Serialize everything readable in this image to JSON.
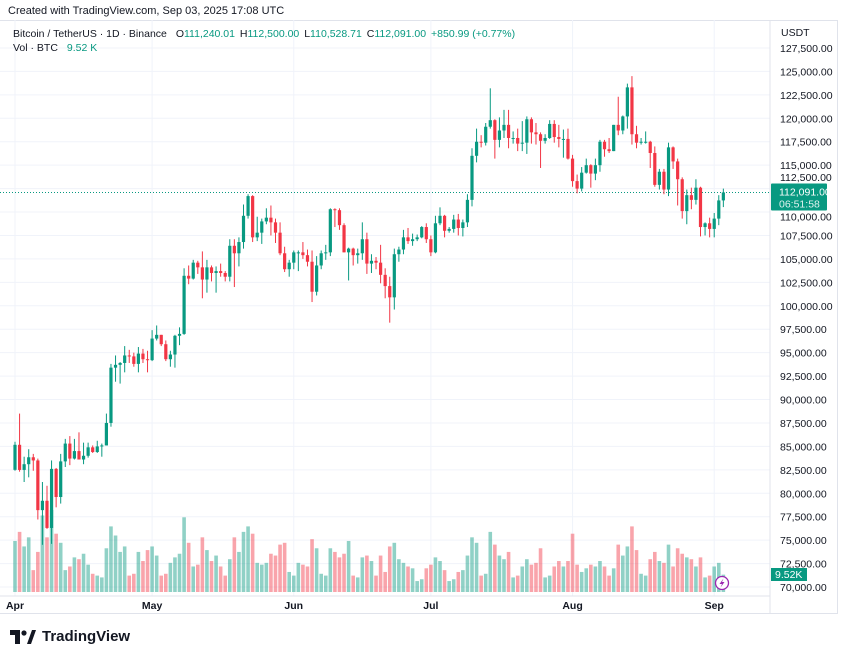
{
  "header": {
    "created": "Created with TradingView.com, Sep 03, 2025 17:08 UTC"
  },
  "legend": {
    "symbol": "Bitcoin / TetherUS · 1D · Binance",
    "o_label": "O",
    "o": "111,240.01",
    "h_label": "H",
    "h": "112,500.00",
    "l_label": "L",
    "l": "110,528.71",
    "c_label": "C",
    "c": "112,091.00",
    "change": "+850.99 (+0.77%)",
    "vol_label": "Vol · BTC",
    "vol": "9.52 K"
  },
  "footer": {
    "brand": "TradingView"
  },
  "colors": {
    "up": "#089981",
    "down": "#f23645",
    "accent": "#089981",
    "lightning": "#9c27b0"
  },
  "chart_data": {
    "type": "candlestick",
    "currency": "USDT",
    "ylim": [
      70000,
      127500
    ],
    "y_ticks": [
      "127,500.00",
      "125,000.00",
      "122,500.00",
      "120,000.00",
      "117,500.00",
      "115,000.00",
      "112,500.00",
      "110,000.00",
      "107,500.00",
      "105,000.00",
      "102,500.00",
      "100,000.00",
      "97,500.00",
      "95,000.00",
      "92,500.00",
      "90,000.00",
      "87,500.00",
      "85,000.00",
      "82,500.00",
      "80,000.00",
      "77,500.00",
      "75,000.00",
      "72,500.00",
      "70,000.00"
    ],
    "x_ticks": [
      {
        "label": "Apr",
        "date": "04-01"
      },
      {
        "label": "May",
        "date": "05-01"
      },
      {
        "label": "Jun",
        "date": "06-01"
      },
      {
        "label": "Jul",
        "date": "07-01"
      },
      {
        "label": "Aug",
        "date": "08-01"
      },
      {
        "label": "Sep",
        "date": "09-01"
      }
    ],
    "last_price": 112091,
    "last_price_label": "112,091.00",
    "countdown": "06:51:58",
    "last_volume_label": "9.52K",
    "grid": true,
    "candle_fields": [
      "date",
      "open",
      "high",
      "low",
      "close",
      "volume_k"
    ],
    "candles": [
      [
        "04-01",
        82500,
        85500,
        82400,
        85170,
        28
      ],
      [
        "04-02",
        85170,
        88500,
        82300,
        82490,
        33
      ],
      [
        "04-03",
        82490,
        83900,
        81200,
        83100,
        25
      ],
      [
        "04-04",
        83100,
        84700,
        81700,
        83840,
        30
      ],
      [
        "04-05",
        83840,
        84200,
        82400,
        83500,
        12
      ],
      [
        "04-06",
        83500,
        83700,
        77200,
        78200,
        22
      ],
      [
        "04-07",
        78200,
        81200,
        74500,
        79200,
        42
      ],
      [
        "04-08",
        79200,
        80800,
        76200,
        76300,
        30
      ],
      [
        "04-09",
        76300,
        83500,
        74600,
        82600,
        45
      ],
      [
        "04-10",
        82600,
        82700,
        78500,
        79600,
        32
      ],
      [
        "04-11",
        79600,
        84200,
        78900,
        83400,
        27
      ],
      [
        "04-12",
        83400,
        85800,
        82800,
        85300,
        12
      ],
      [
        "04-13",
        85300,
        86100,
        83000,
        83700,
        14
      ],
      [
        "04-14",
        83700,
        85800,
        83600,
        84500,
        19
      ],
      [
        "04-15",
        84500,
        86500,
        83600,
        83600,
        18
      ],
      [
        "04-16",
        83600,
        85400,
        83100,
        84000,
        21
      ],
      [
        "04-17",
        84000,
        85400,
        83800,
        84900,
        15
      ],
      [
        "04-18",
        84900,
        85100,
        84300,
        84400,
        10
      ],
      [
        "04-19",
        84400,
        85600,
        84300,
        85000,
        9
      ],
      [
        "04-20",
        85000,
        85300,
        83900,
        85100,
        8
      ],
      [
        "04-21",
        85100,
        88500,
        85100,
        87500,
        24
      ],
      [
        "04-22",
        87500,
        93800,
        87100,
        93400,
        36
      ],
      [
        "04-23",
        93400,
        94700,
        91900,
        93700,
        31
      ],
      [
        "04-24",
        93700,
        94000,
        91700,
        93900,
        22
      ],
      [
        "04-25",
        93900,
        95700,
        92900,
        94700,
        25
      ],
      [
        "04-26",
        94700,
        95300,
        93900,
        94600,
        9
      ],
      [
        "04-27",
        94600,
        95000,
        93500,
        93800,
        10
      ],
      [
        "04-28",
        93800,
        95600,
        92900,
        94900,
        22
      ],
      [
        "04-29",
        94900,
        95400,
        93900,
        94300,
        17
      ],
      [
        "04-30",
        94300,
        95200,
        92900,
        94200,
        23
      ],
      [
        "05-01",
        94200,
        97400,
        94100,
        96500,
        25
      ],
      [
        "05-02",
        96500,
        97900,
        96300,
        96900,
        20
      ],
      [
        "05-03",
        96900,
        96900,
        95700,
        95900,
        9
      ],
      [
        "05-04",
        95900,
        96300,
        94100,
        94300,
        10
      ],
      [
        "05-05",
        94300,
        95200,
        93500,
        94800,
        16
      ],
      [
        "05-06",
        94800,
        96900,
        93400,
        96800,
        19
      ],
      [
        "05-07",
        96800,
        97700,
        95800,
        97000,
        21
      ],
      [
        "05-08",
        97000,
        104000,
        96900,
        103200,
        41
      ],
      [
        "05-09",
        103200,
        104300,
        102300,
        102900,
        27
      ],
      [
        "05-10",
        102900,
        104900,
        102800,
        104600,
        14
      ],
      [
        "05-11",
        104600,
        104800,
        103400,
        104100,
        15
      ],
      [
        "05-12",
        104100,
        105800,
        100800,
        102800,
        30
      ],
      [
        "05-13",
        102800,
        104900,
        101400,
        104100,
        23
      ],
      [
        "05-14",
        104100,
        104300,
        102600,
        103500,
        17
      ],
      [
        "05-15",
        103500,
        104200,
        101400,
        103700,
        20
      ],
      [
        "05-16",
        103700,
        104500,
        103100,
        103500,
        14
      ],
      [
        "05-17",
        103500,
        103700,
        102600,
        103100,
        9
      ],
      [
        "05-18",
        103100,
        107100,
        102600,
        106400,
        18
      ],
      [
        "05-19",
        106400,
        107100,
        102000,
        105600,
        30
      ],
      [
        "05-20",
        105600,
        107300,
        104200,
        106800,
        22
      ],
      [
        "05-21",
        106800,
        110800,
        106100,
        109600,
        33
      ],
      [
        "05-22",
        109600,
        111900,
        109300,
        111700,
        36
      ],
      [
        "05-23",
        111700,
        111800,
        106800,
        107300,
        32
      ],
      [
        "05-24",
        107300,
        109500,
        106900,
        107800,
        16
      ],
      [
        "05-25",
        107800,
        109300,
        106600,
        109000,
        15
      ],
      [
        "05-26",
        109000,
        110400,
        108700,
        109400,
        16
      ],
      [
        "05-27",
        109400,
        110700,
        107500,
        108900,
        21
      ],
      [
        "05-28",
        108900,
        109300,
        106700,
        107800,
        20
      ],
      [
        "05-29",
        107800,
        108900,
        105400,
        105600,
        26
      ],
      [
        "05-30",
        105600,
        106300,
        103600,
        103900,
        27
      ],
      [
        "05-31",
        103900,
        104900,
        103100,
        104600,
        11
      ],
      [
        "06-01",
        104600,
        105900,
        103900,
        105700,
        9
      ],
      [
        "06-02",
        105700,
        105900,
        103700,
        105700,
        16
      ],
      [
        "06-03",
        105700,
        106800,
        105000,
        105400,
        15
      ],
      [
        "06-04",
        105400,
        106000,
        104200,
        104700,
        14
      ],
      [
        "06-05",
        104700,
        105900,
        100400,
        101500,
        29
      ],
      [
        "06-06",
        101500,
        105300,
        101100,
        104300,
        24
      ],
      [
        "06-07",
        104300,
        105900,
        103900,
        105600,
        10
      ],
      [
        "06-08",
        105600,
        106500,
        104900,
        105700,
        9
      ],
      [
        "06-09",
        105700,
        110400,
        105300,
        110300,
        24
      ],
      [
        "06-10",
        110300,
        110400,
        108400,
        110200,
        22
      ],
      [
        "06-11",
        110200,
        110400,
        108100,
        108600,
        19
      ],
      [
        "06-12",
        108600,
        108800,
        105700,
        105700,
        21
      ],
      [
        "06-13",
        105700,
        106200,
        102700,
        106100,
        28
      ],
      [
        "06-14",
        106100,
        106200,
        104300,
        105400,
        9
      ],
      [
        "06-15",
        105400,
        106100,
        104500,
        105600,
        8
      ],
      [
        "06-16",
        105600,
        108900,
        104900,
        107100,
        19
      ],
      [
        "06-17",
        107100,
        107800,
        103400,
        104500,
        20
      ],
      [
        "06-18",
        104500,
        105500,
        103500,
        104800,
        17
      ],
      [
        "06-19",
        104800,
        105200,
        103900,
        104600,
        9
      ],
      [
        "06-20",
        104600,
        106500,
        102400,
        103300,
        20
      ],
      [
        "06-21",
        103300,
        104000,
        100800,
        102100,
        11
      ],
      [
        "06-22",
        102100,
        103100,
        98200,
        100900,
        25
      ],
      [
        "06-23",
        100900,
        106100,
        99600,
        105500,
        27
      ],
      [
        "06-24",
        105500,
        106300,
        104700,
        106000,
        18
      ],
      [
        "06-25",
        106000,
        108100,
        105500,
        107300,
        16
      ],
      [
        "06-26",
        107300,
        108300,
        106600,
        106900,
        14
      ],
      [
        "06-27",
        106900,
        107700,
        106400,
        107100,
        13
      ],
      [
        "06-28",
        107100,
        107600,
        106900,
        107300,
        6
      ],
      [
        "06-29",
        107300,
        108500,
        107200,
        108400,
        7
      ],
      [
        "06-30",
        108400,
        108800,
        106700,
        107100,
        13
      ],
      [
        "07-01",
        107100,
        107500,
        105300,
        105700,
        15
      ],
      [
        "07-02",
        105700,
        109600,
        105600,
        108800,
        19
      ],
      [
        "07-03",
        108800,
        110500,
        108600,
        109600,
        17
      ],
      [
        "07-04",
        109600,
        109700,
        107300,
        108000,
        12
      ],
      [
        "07-05",
        108000,
        108400,
        107800,
        108200,
        6
      ],
      [
        "07-06",
        108200,
        109700,
        107800,
        109200,
        7
      ],
      [
        "07-07",
        109200,
        109800,
        107500,
        108300,
        11
      ],
      [
        "07-08",
        108300,
        109200,
        107400,
        108900,
        12
      ],
      [
        "07-09",
        108900,
        111900,
        108400,
        111300,
        20
      ],
      [
        "07-10",
        111300,
        116800,
        110600,
        116000,
        30
      ],
      [
        "07-11",
        116000,
        118900,
        115300,
        117500,
        27
      ],
      [
        "07-12",
        117500,
        118200,
        116900,
        117400,
        9
      ],
      [
        "07-13",
        117400,
        119500,
        117100,
        119100,
        10
      ],
      [
        "07-14",
        119100,
        123200,
        118900,
        119800,
        33
      ],
      [
        "07-15",
        119800,
        119900,
        115700,
        117700,
        26
      ],
      [
        "07-16",
        117700,
        120100,
        116900,
        118700,
        20
      ],
      [
        "07-17",
        118700,
        120900,
        117900,
        119300,
        18
      ],
      [
        "07-18",
        119300,
        120900,
        116800,
        117900,
        22
      ],
      [
        "07-19",
        117900,
        118600,
        117300,
        117900,
        8
      ],
      [
        "07-20",
        117900,
        118900,
        116500,
        117300,
        9
      ],
      [
        "07-21",
        117300,
        119700,
        116500,
        117400,
        14
      ],
      [
        "07-22",
        117400,
        120200,
        116200,
        119900,
        18
      ],
      [
        "07-23",
        119900,
        120100,
        117300,
        118500,
        15
      ],
      [
        "07-24",
        118500,
        119500,
        117200,
        118300,
        16
      ],
      [
        "07-25",
        118300,
        118500,
        114700,
        117600,
        24
      ],
      [
        "07-26",
        117600,
        118300,
        117300,
        117900,
        8
      ],
      [
        "07-27",
        117900,
        119800,
        117800,
        119400,
        9
      ],
      [
        "07-28",
        119400,
        119800,
        117400,
        118000,
        14
      ],
      [
        "07-29",
        118000,
        119300,
        116900,
        117800,
        17
      ],
      [
        "07-30",
        117800,
        118800,
        115800,
        117800,
        14
      ],
      [
        "07-31",
        117800,
        118900,
        115600,
        115700,
        17
      ],
      [
        "08-01",
        115700,
        116100,
        112700,
        113300,
        32
      ],
      [
        "08-02",
        113300,
        114000,
        112000,
        112500,
        15
      ],
      [
        "08-03",
        112500,
        114800,
        112200,
        114200,
        11
      ],
      [
        "08-04",
        114200,
        115700,
        114100,
        115000,
        13
      ],
      [
        "08-05",
        115000,
        115100,
        112600,
        114100,
        15
      ],
      [
        "08-06",
        114100,
        115700,
        113400,
        115000,
        14
      ],
      [
        "08-07",
        115000,
        117700,
        114300,
        117500,
        17
      ],
      [
        "08-08",
        117500,
        117700,
        115900,
        116700,
        14
      ],
      [
        "08-09",
        116700,
        117900,
        116300,
        116500,
        9
      ],
      [
        "08-10",
        116500,
        119300,
        116500,
        119300,
        13
      ],
      [
        "08-11",
        119300,
        122300,
        118200,
        118700,
        26
      ],
      [
        "08-12",
        118700,
        120300,
        118300,
        120200,
        20
      ],
      [
        "08-13",
        120200,
        123700,
        118900,
        123300,
        25
      ],
      [
        "08-14",
        123300,
        124500,
        117200,
        118300,
        36
      ],
      [
        "08-15",
        118300,
        119200,
        116800,
        117400,
        23
      ],
      [
        "08-16",
        117400,
        117900,
        117200,
        117500,
        10
      ],
      [
        "08-17",
        117500,
        118600,
        117300,
        117500,
        9
      ],
      [
        "08-18",
        117500,
        117600,
        114700,
        116300,
        18
      ],
      [
        "08-19",
        116300,
        117000,
        112700,
        112900,
        22
      ],
      [
        "08-20",
        112900,
        114600,
        112400,
        114300,
        17
      ],
      [
        "08-21",
        114300,
        114600,
        111900,
        112400,
        16
      ],
      [
        "08-22",
        112400,
        117400,
        111700,
        116900,
        26
      ],
      [
        "08-23",
        116900,
        117000,
        114600,
        115400,
        14
      ],
      [
        "08-24",
        115400,
        115700,
        110700,
        113500,
        24
      ],
      [
        "08-25",
        113500,
        113700,
        109300,
        110100,
        21
      ],
      [
        "08-26",
        110100,
        112400,
        108700,
        111800,
        19
      ],
      [
        "08-27",
        111800,
        112600,
        110300,
        111300,
        18
      ],
      [
        "08-28",
        111300,
        113500,
        110800,
        112600,
        14
      ],
      [
        "08-29",
        112600,
        112700,
        107400,
        108400,
        19
      ],
      [
        "08-30",
        108400,
        108900,
        107500,
        108800,
        8
      ],
      [
        "08-31",
        108800,
        109400,
        107300,
        108200,
        9
      ],
      [
        "09-01",
        108200,
        109900,
        107300,
        109300,
        14
      ],
      [
        "09-02",
        109300,
        111800,
        108600,
        111240,
        16
      ],
      [
        "09-03",
        111240.01,
        112500,
        110528.71,
        112091,
        9.52
      ]
    ]
  }
}
